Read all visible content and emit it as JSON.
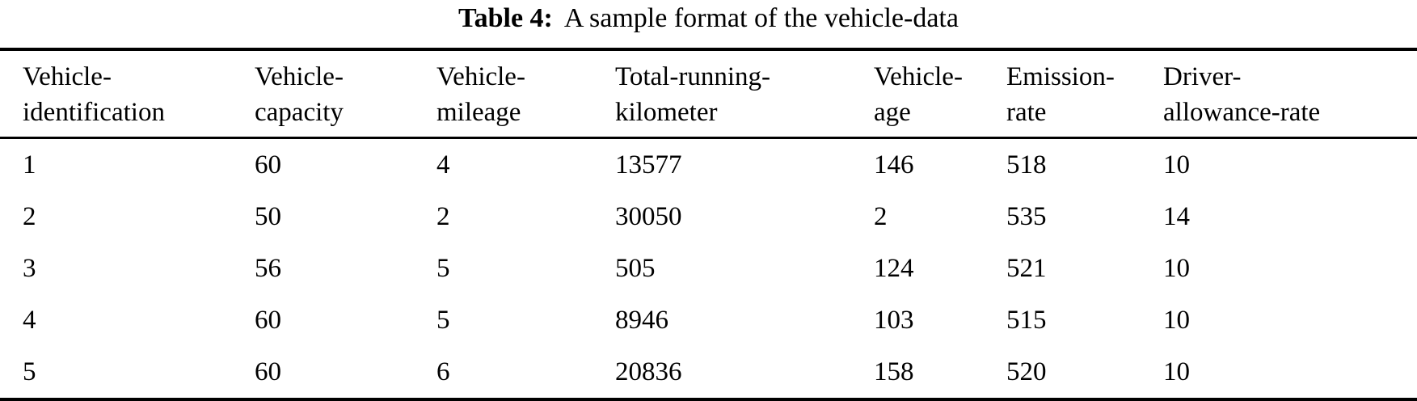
{
  "caption": {
    "label": "Table 4:",
    "text": "A sample format of the vehicle-data"
  },
  "table": {
    "headers": [
      {
        "id": "vehicle-identification",
        "lines": [
          "Vehicle-",
          "identification"
        ]
      },
      {
        "id": "vehicle-capacity",
        "lines": [
          "Vehicle-",
          "capacity"
        ]
      },
      {
        "id": "vehicle-mileage",
        "lines": [
          "Vehicle-",
          "mileage"
        ]
      },
      {
        "id": "total-running-kilometer",
        "lines": [
          "Total-running-",
          "kilometer"
        ]
      },
      {
        "id": "vehicle-age",
        "lines": [
          "Vehicle-",
          "age"
        ]
      },
      {
        "id": "emission-rate",
        "lines": [
          "Emission-",
          "rate"
        ]
      },
      {
        "id": "driver-allowance-rate",
        "lines": [
          "Driver-",
          "allowance-rate"
        ]
      }
    ],
    "rows": [
      [
        "1",
        "60",
        "4",
        "13577",
        "146",
        "518",
        "10"
      ],
      [
        "2",
        "50",
        "2",
        "30050",
        "2",
        "535",
        "14"
      ],
      [
        "3",
        "56",
        "5",
        "505",
        "124",
        "521",
        "10"
      ],
      [
        "4",
        "60",
        "5",
        "8946",
        "103",
        "515",
        "10"
      ],
      [
        "5",
        "60",
        "6",
        "20836",
        "158",
        "520",
        "10"
      ]
    ]
  },
  "colors": {
    "text": "#000000",
    "background": "#ffffff",
    "rule": "#000000"
  }
}
